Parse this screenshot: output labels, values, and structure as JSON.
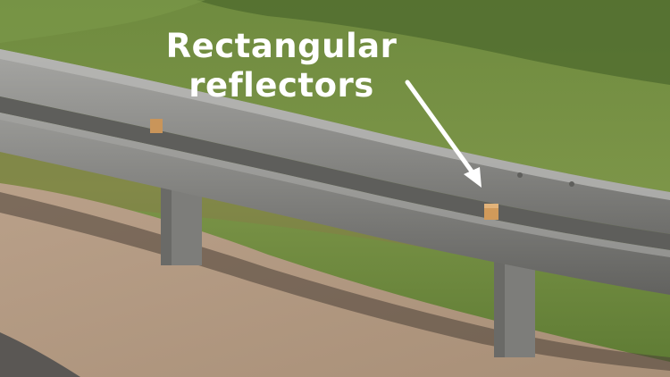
{
  "annotation": {
    "line1": "Rectangular",
    "line2": "reflectors",
    "text_color": "#ffffff",
    "arrow_color": "#ffffff"
  },
  "palette": {
    "grass": "#6d8a3e",
    "grass_dark": "#4f6a2a",
    "dirt": "#b59b83",
    "rail": "#8f8f8d",
    "rail_shadow": "#5f5f5d",
    "post": "#7e7e7b",
    "reflector": "#d19a5a"
  }
}
